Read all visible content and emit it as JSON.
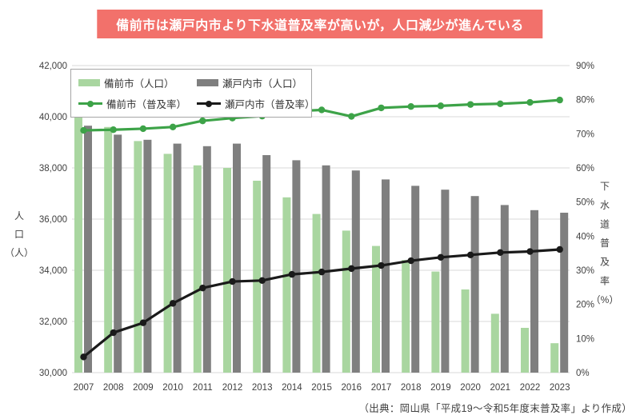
{
  "title": {
    "text": "備前市は瀬戸内市より下水道普及率が高いが，人口減少が進んでいる",
    "bg_color": "#F2716B",
    "text_color": "#FFFFFF"
  },
  "source_note": "（出典：岡山県「平成19～令和5年度末普及率」より作成）",
  "legend": {
    "items": [
      {
        "label": "備前市（人口）",
        "type": "bar",
        "color": "#A9D6A0"
      },
      {
        "label": "瀬戸内市（人口）",
        "type": "bar",
        "color": "#7F7F7F"
      },
      {
        "label": "備前市（普及率）",
        "type": "line",
        "color": "#3DA348"
      },
      {
        "label": "瀬戸内市（普及率）",
        "type": "line",
        "color": "#1A1A1A"
      }
    ]
  },
  "chart_data": {
    "type": "bar+line combo",
    "title": "備前市は瀬戸内市より下水道普及率が高いが，人口減少が進んでいる",
    "categories": [
      "2007",
      "2008",
      "2009",
      "2010",
      "2011",
      "2012",
      "2013",
      "2014",
      "2015",
      "2016",
      "2017",
      "2018",
      "2019",
      "2020",
      "2021",
      "2022",
      "2023"
    ],
    "series": [
      {
        "name": "備前市（人口）",
        "type": "bar",
        "axis": "left",
        "color": "#A9D6A0",
        "values": [
          40150,
          39600,
          39050,
          38550,
          38100,
          38000,
          37500,
          36850,
          36200,
          35550,
          34950,
          34400,
          33950,
          33250,
          32300,
          31750,
          31150
        ]
      },
      {
        "name": "瀬戸内市（人口）",
        "type": "bar",
        "axis": "left",
        "color": "#7F7F7F",
        "values": [
          39650,
          39300,
          39100,
          38950,
          38850,
          38950,
          38500,
          38300,
          38100,
          37900,
          37550,
          37300,
          37150,
          36900,
          36550,
          36350,
          36250
        ]
      },
      {
        "name": "備前市（普及率）",
        "type": "line",
        "axis": "right",
        "color": "#3DA348",
        "values": [
          71.0,
          71.2,
          71.5,
          72.0,
          73.8,
          74.6,
          75.2,
          76.6,
          77.0,
          75.1,
          77.6,
          78.0,
          78.2,
          78.6,
          78.8,
          79.2,
          79.9
        ]
      },
      {
        "name": "瀬戸内市（普及率）",
        "type": "line",
        "axis": "right",
        "color": "#1A1A1A",
        "values": [
          4.6,
          11.7,
          14.6,
          20.3,
          24.8,
          26.7,
          27.0,
          28.8,
          29.5,
          30.5,
          31.4,
          32.8,
          33.8,
          34.5,
          35.2,
          35.5,
          36.1
        ]
      }
    ],
    "left_axis": {
      "label": "人口（人）",
      "label_stack": [
        "人",
        "口",
        "（人）"
      ],
      "min": 30000,
      "max": 42000,
      "step": 2000,
      "tick_labels": [
        "42,000",
        "40,000",
        "38,000",
        "36,000",
        "34,000",
        "32,000",
        "30,000"
      ]
    },
    "right_axis": {
      "label": "下水道普及率（%）",
      "label_stack": [
        "下",
        "水",
        "道",
        "普",
        "及",
        "率",
        "（%）"
      ],
      "min": 0,
      "max": 90,
      "step": 10,
      "tick_labels": [
        "90%",
        "80%",
        "70%",
        "60%",
        "50%",
        "40%",
        "30%",
        "20%",
        "10%",
        "0%"
      ]
    },
    "grid": true,
    "legend_position": "top-left",
    "gridline_color": "#D8D8D8",
    "axis_text_color": "#3F3F3F"
  }
}
